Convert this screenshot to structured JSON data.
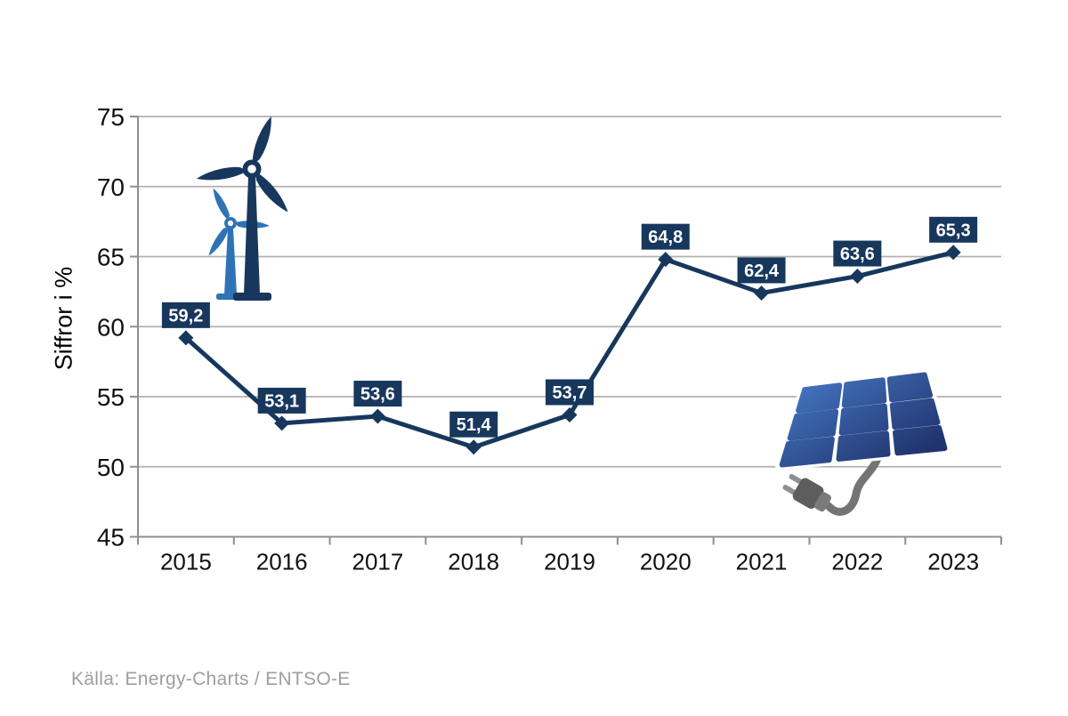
{
  "chart_data": {
    "type": "line",
    "title": "",
    "categories": [
      "2015",
      "2016",
      "2017",
      "2018",
      "2019",
      "2020",
      "2021",
      "2022",
      "2023"
    ],
    "values": [
      59.2,
      53.1,
      53.6,
      51.4,
      53.7,
      64.8,
      62.4,
      63.6,
      65.3
    ],
    "value_labels": [
      "59,2",
      "53,1",
      "53,6",
      "51,4",
      "53,7",
      "64,8",
      "62,4",
      "63,6",
      "65,3"
    ],
    "xlabel": "",
    "ylabel": "Siffror i %",
    "ylim": [
      45,
      75
    ],
    "yticks": [
      45,
      50,
      55,
      60,
      65,
      70,
      75
    ],
    "grid": true,
    "legend": "none",
    "data_labels_visible": true
  },
  "source": "Källa: Energy-Charts / ENTSO-E",
  "icons": {
    "wind_turbines": "wind-turbines-icon",
    "solar_panel_plug": "solar-panel-plug-icon"
  },
  "colors": {
    "line": "#17375d",
    "marker": "#17375d",
    "data_label_bg": "#17375d",
    "data_label_text": "#ffffff",
    "grid": "#b1b1b1",
    "axis": "#8f8f8f",
    "tick_label": "#111111",
    "turbine_dark": "#17375d",
    "turbine_light": "#2e74b5",
    "panel_gradient_start": "#4170ba",
    "panel_gradient_end": "#20336d",
    "cord": "#747474",
    "plug_body": "#5d5d5d",
    "plug_collar": "#7a7a7a",
    "plug_prong": "#8f8f8f",
    "source_text": "#9e9e9e"
  }
}
